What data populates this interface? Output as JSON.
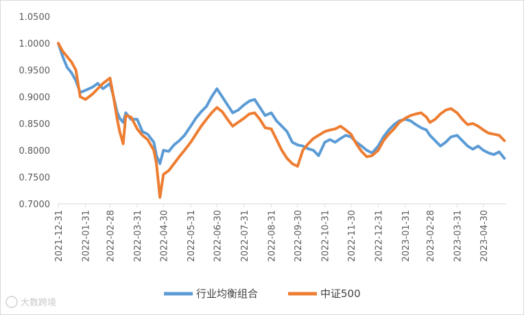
{
  "chart_data": {
    "type": "line",
    "title": "",
    "xlabel": "",
    "ylabel": "",
    "ylim": [
      0.7,
      1.05
    ],
    "yticks": [
      "0.7000",
      "0.7500",
      "0.8000",
      "0.8500",
      "0.9000",
      "0.9500",
      "1.0000",
      "1.0500"
    ],
    "xticks": [
      "2021-12-31",
      "2022-01-31",
      "2022-02-28",
      "2022-03-31",
      "2022-04-30",
      "2022-05-31",
      "2022-06-30",
      "2022-07-31",
      "2022-08-31",
      "2022-09-30",
      "2022-10-31",
      "2022-11-30",
      "2022-12-31",
      "2023-01-31",
      "2023-02-28",
      "2023-03-31",
      "2023-04-30"
    ],
    "grid": false,
    "legend_position": "bottom",
    "series": [
      {
        "name": "行业均衡组合",
        "color": "#5B9BD5",
        "points": [
          [
            "2021-12-31",
            1.0
          ],
          [
            "2022-01-05",
            0.975
          ],
          [
            "2022-01-10",
            0.955
          ],
          [
            "2022-01-15",
            0.945
          ],
          [
            "2022-01-20",
            0.93
          ],
          [
            "2022-01-25",
            0.908
          ],
          [
            "2022-01-31",
            0.912
          ],
          [
            "2022-02-08",
            0.918
          ],
          [
            "2022-02-14",
            0.925
          ],
          [
            "2022-02-20",
            0.915
          ],
          [
            "2022-02-28",
            0.925
          ],
          [
            "2022-03-04",
            0.9
          ],
          [
            "2022-03-08",
            0.872
          ],
          [
            "2022-03-11",
            0.86
          ],
          [
            "2022-03-15",
            0.852
          ],
          [
            "2022-03-18",
            0.87
          ],
          [
            "2022-03-24",
            0.858
          ],
          [
            "2022-03-31",
            0.858
          ],
          [
            "2022-04-06",
            0.835
          ],
          [
            "2022-04-12",
            0.83
          ],
          [
            "2022-04-19",
            0.815
          ],
          [
            "2022-04-22",
            0.79
          ],
          [
            "2022-04-26",
            0.775
          ],
          [
            "2022-04-30",
            0.8
          ],
          [
            "2022-05-06",
            0.798
          ],
          [
            "2022-05-12",
            0.81
          ],
          [
            "2022-05-18",
            0.818
          ],
          [
            "2022-05-24",
            0.828
          ],
          [
            "2022-05-31",
            0.845
          ],
          [
            "2022-06-06",
            0.86
          ],
          [
            "2022-06-12",
            0.872
          ],
          [
            "2022-06-18",
            0.882
          ],
          [
            "2022-06-24",
            0.9
          ],
          [
            "2022-06-30",
            0.915
          ],
          [
            "2022-07-06",
            0.9
          ],
          [
            "2022-07-12",
            0.885
          ],
          [
            "2022-07-18",
            0.87
          ],
          [
            "2022-07-24",
            0.875
          ],
          [
            "2022-07-31",
            0.885
          ],
          [
            "2022-08-06",
            0.892
          ],
          [
            "2022-08-12",
            0.895
          ],
          [
            "2022-08-18",
            0.88
          ],
          [
            "2022-08-24",
            0.865
          ],
          [
            "2022-08-31",
            0.87
          ],
          [
            "2022-09-06",
            0.855
          ],
          [
            "2022-09-12",
            0.845
          ],
          [
            "2022-09-18",
            0.835
          ],
          [
            "2022-09-24",
            0.815
          ],
          [
            "2022-09-30",
            0.81
          ],
          [
            "2022-10-06",
            0.808
          ],
          [
            "2022-10-12",
            0.803
          ],
          [
            "2022-10-18",
            0.8
          ],
          [
            "2022-10-24",
            0.79
          ],
          [
            "2022-10-31",
            0.815
          ],
          [
            "2022-11-06",
            0.82
          ],
          [
            "2022-11-12",
            0.815
          ],
          [
            "2022-11-18",
            0.822
          ],
          [
            "2022-11-24",
            0.828
          ],
          [
            "2022-11-30",
            0.825
          ],
          [
            "2022-12-06",
            0.815
          ],
          [
            "2022-12-12",
            0.808
          ],
          [
            "2022-12-18",
            0.8
          ],
          [
            "2022-12-24",
            0.795
          ],
          [
            "2022-12-31",
            0.808
          ],
          [
            "2023-01-06",
            0.825
          ],
          [
            "2023-01-12",
            0.838
          ],
          [
            "2023-01-18",
            0.848
          ],
          [
            "2023-01-24",
            0.855
          ],
          [
            "2023-01-31",
            0.858
          ],
          [
            "2023-02-06",
            0.855
          ],
          [
            "2023-02-12",
            0.848
          ],
          [
            "2023-02-18",
            0.842
          ],
          [
            "2023-02-24",
            0.838
          ],
          [
            "2023-02-28",
            0.828
          ],
          [
            "2023-03-06",
            0.818
          ],
          [
            "2023-03-12",
            0.808
          ],
          [
            "2023-03-18",
            0.815
          ],
          [
            "2023-03-24",
            0.825
          ],
          [
            "2023-03-31",
            0.828
          ],
          [
            "2023-04-06",
            0.818
          ],
          [
            "2023-04-12",
            0.808
          ],
          [
            "2023-04-18",
            0.802
          ],
          [
            "2023-04-24",
            0.808
          ],
          [
            "2023-04-30",
            0.8
          ],
          [
            "2023-05-06",
            0.795
          ],
          [
            "2023-05-12",
            0.792
          ],
          [
            "2023-05-18",
            0.797
          ],
          [
            "2023-05-24",
            0.785
          ]
        ]
      },
      {
        "name": "中证500",
        "color": "#ED7D31",
        "points": [
          [
            "2021-12-31",
            1.0
          ],
          [
            "2022-01-05",
            0.985
          ],
          [
            "2022-01-10",
            0.975
          ],
          [
            "2022-01-15",
            0.965
          ],
          [
            "2022-01-20",
            0.95
          ],
          [
            "2022-01-25",
            0.9
          ],
          [
            "2022-01-31",
            0.895
          ],
          [
            "2022-02-08",
            0.905
          ],
          [
            "2022-02-14",
            0.915
          ],
          [
            "2022-02-20",
            0.925
          ],
          [
            "2022-02-28",
            0.935
          ],
          [
            "2022-03-04",
            0.9
          ],
          [
            "2022-03-08",
            0.86
          ],
          [
            "2022-03-11",
            0.835
          ],
          [
            "2022-03-15",
            0.812
          ],
          [
            "2022-03-18",
            0.865
          ],
          [
            "2022-03-24",
            0.862
          ],
          [
            "2022-03-31",
            0.84
          ],
          [
            "2022-04-06",
            0.828
          ],
          [
            "2022-04-12",
            0.82
          ],
          [
            "2022-04-19",
            0.8
          ],
          [
            "2022-04-22",
            0.775
          ],
          [
            "2022-04-26",
            0.712
          ],
          [
            "2022-04-30",
            0.755
          ],
          [
            "2022-05-06",
            0.762
          ],
          [
            "2022-05-12",
            0.775
          ],
          [
            "2022-05-18",
            0.788
          ],
          [
            "2022-05-24",
            0.8
          ],
          [
            "2022-05-31",
            0.815
          ],
          [
            "2022-06-06",
            0.83
          ],
          [
            "2022-06-12",
            0.845
          ],
          [
            "2022-06-18",
            0.858
          ],
          [
            "2022-06-24",
            0.87
          ],
          [
            "2022-06-30",
            0.88
          ],
          [
            "2022-07-06",
            0.872
          ],
          [
            "2022-07-12",
            0.858
          ],
          [
            "2022-07-18",
            0.845
          ],
          [
            "2022-07-24",
            0.852
          ],
          [
            "2022-07-31",
            0.86
          ],
          [
            "2022-08-06",
            0.868
          ],
          [
            "2022-08-12",
            0.87
          ],
          [
            "2022-08-18",
            0.858
          ],
          [
            "2022-08-24",
            0.842
          ],
          [
            "2022-08-31",
            0.84
          ],
          [
            "2022-09-06",
            0.82
          ],
          [
            "2022-09-12",
            0.8
          ],
          [
            "2022-09-18",
            0.785
          ],
          [
            "2022-09-24",
            0.775
          ],
          [
            "2022-09-30",
            0.77
          ],
          [
            "2022-10-06",
            0.8
          ],
          [
            "2022-10-12",
            0.812
          ],
          [
            "2022-10-18",
            0.822
          ],
          [
            "2022-10-24",
            0.828
          ],
          [
            "2022-10-31",
            0.835
          ],
          [
            "2022-11-06",
            0.838
          ],
          [
            "2022-11-12",
            0.84
          ],
          [
            "2022-11-18",
            0.845
          ],
          [
            "2022-11-24",
            0.838
          ],
          [
            "2022-11-30",
            0.83
          ],
          [
            "2022-12-06",
            0.812
          ],
          [
            "2022-12-12",
            0.798
          ],
          [
            "2022-12-18",
            0.788
          ],
          [
            "2022-12-24",
            0.79
          ],
          [
            "2022-12-31",
            0.8
          ],
          [
            "2023-01-06",
            0.818
          ],
          [
            "2023-01-12",
            0.83
          ],
          [
            "2023-01-18",
            0.84
          ],
          [
            "2023-01-24",
            0.852
          ],
          [
            "2023-01-31",
            0.86
          ],
          [
            "2023-02-06",
            0.865
          ],
          [
            "2023-02-12",
            0.868
          ],
          [
            "2023-02-18",
            0.87
          ],
          [
            "2023-02-24",
            0.862
          ],
          [
            "2023-02-28",
            0.852
          ],
          [
            "2023-03-06",
            0.858
          ],
          [
            "2023-03-12",
            0.868
          ],
          [
            "2023-03-18",
            0.875
          ],
          [
            "2023-03-24",
            0.878
          ],
          [
            "2023-03-31",
            0.87
          ],
          [
            "2023-04-06",
            0.858
          ],
          [
            "2023-04-12",
            0.848
          ],
          [
            "2023-04-18",
            0.85
          ],
          [
            "2023-04-24",
            0.845
          ],
          [
            "2023-04-30",
            0.838
          ],
          [
            "2023-05-06",
            0.832
          ],
          [
            "2023-05-12",
            0.83
          ],
          [
            "2023-05-18",
            0.828
          ],
          [
            "2023-05-24",
            0.818
          ]
        ]
      }
    ]
  },
  "watermark": {
    "text": "大数跨境",
    "color": "#c8c8c8"
  }
}
